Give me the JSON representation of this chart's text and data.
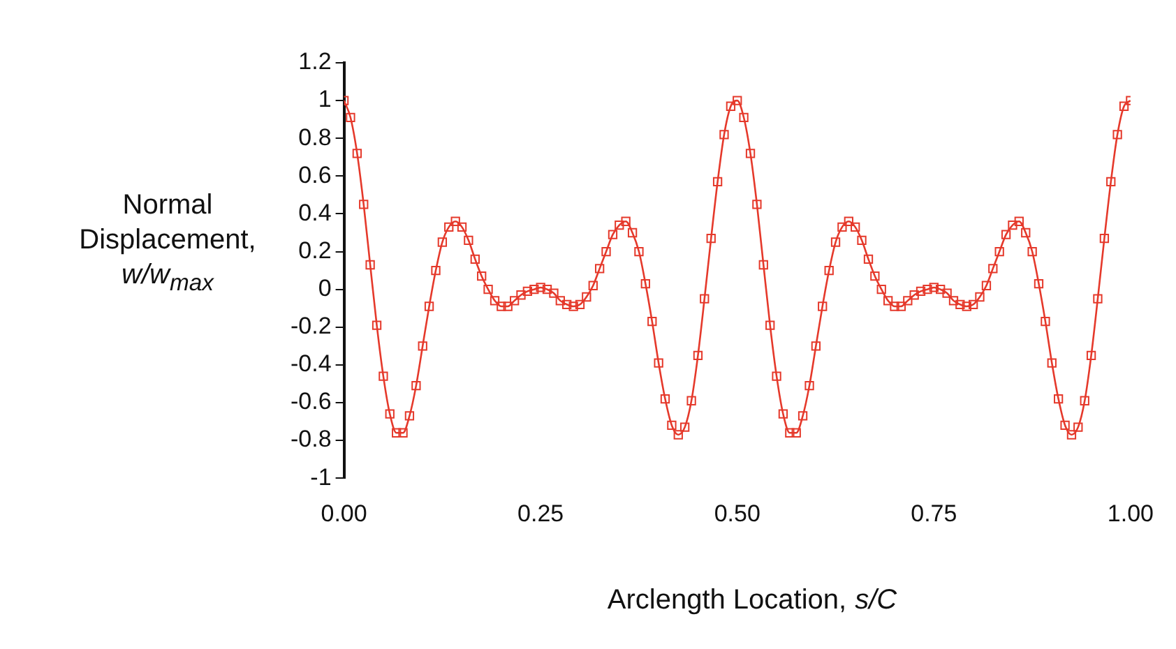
{
  "chart_data": {
    "type": "line",
    "xlabel": "Arclength Location, s/C",
    "ylabel": "Normal Displacement, w/w$_{max}$",
    "x": [
      0,
      0.0083,
      0.0167,
      0.025,
      0.0333,
      0.0417,
      0.05,
      0.0583,
      0.0667,
      0.075,
      0.0833,
      0.0917,
      0.1,
      0.1083,
      0.1167,
      0.125,
      0.1333,
      0.1417,
      0.15,
      0.1583,
      0.1667,
      0.175,
      0.1833,
      0.1917,
      0.2,
      0.2083,
      0.2167,
      0.225,
      0.2333,
      0.2417,
      0.25,
      0.2583,
      0.2667,
      0.275,
      0.2833,
      0.2917,
      0.3,
      0.3083,
      0.3167,
      0.325,
      0.3333,
      0.3417,
      0.35,
      0.3583,
      0.3667,
      0.375,
      0.3833,
      0.3917,
      0.4,
      0.4083,
      0.4167,
      0.425,
      0.4333,
      0.4417,
      0.45,
      0.4583,
      0.4667,
      0.475,
      0.4833,
      0.4917,
      0.5,
      0.5083,
      0.5167,
      0.525,
      0.5333,
      0.5417,
      0.55,
      0.5583,
      0.5667,
      0.575,
      0.5833,
      0.5917,
      0.6,
      0.6083,
      0.6167,
      0.625,
      0.6333,
      0.6417,
      0.65,
      0.6583,
      0.6667,
      0.675,
      0.6833,
      0.6917,
      0.7,
      0.7083,
      0.7167,
      0.725,
      0.7333,
      0.7417,
      0.75,
      0.7583,
      0.7667,
      0.775,
      0.7833,
      0.7917,
      0.8,
      0.8083,
      0.8167,
      0.825,
      0.8333,
      0.8417,
      0.85,
      0.8583,
      0.8667,
      0.875,
      0.8833,
      0.8917,
      0.9,
      0.9083,
      0.9167,
      0.925,
      0.9333,
      0.9417,
      0.95,
      0.9583,
      0.9667,
      0.975,
      0.9833,
      0.9917,
      1
    ],
    "series": [
      {
        "color": "#e5392b",
        "values": [
          1,
          0.91,
          0.72,
          0.45,
          0.13,
          -0.19,
          -0.46,
          -0.66,
          -0.76,
          -0.76,
          -0.67,
          -0.51,
          -0.3,
          -0.09,
          0.1,
          0.25,
          0.33,
          0.36,
          0.33,
          0.26,
          0.16,
          0.07,
          0,
          -0.06,
          -0.09,
          -0.09,
          -0.06,
          -0.03,
          -0.01,
          0,
          0.01,
          0,
          -0.02,
          -0.06,
          -0.08,
          -0.09,
          -0.08,
          -0.04,
          0.02,
          0.11,
          0.2,
          0.29,
          0.34,
          0.36,
          0.3,
          0.2,
          0.03,
          -0.17,
          -0.39,
          -0.58,
          -0.72,
          -0.77,
          -0.73,
          -0.59,
          -0.35,
          -0.05,
          0.27,
          0.57,
          0.82,
          0.97,
          1,
          0.91,
          0.72,
          0.45,
          0.13,
          -0.19,
          -0.46,
          -0.66,
          -0.76,
          -0.76,
          -0.67,
          -0.51,
          -0.3,
          -0.09,
          0.1,
          0.25,
          0.33,
          0.36,
          0.33,
          0.26,
          0.16,
          0.07,
          0,
          -0.06,
          -0.09,
          -0.09,
          -0.06,
          -0.03,
          -0.01,
          0,
          0.01,
          0,
          -0.02,
          -0.06,
          -0.08,
          -0.09,
          -0.08,
          -0.04,
          0.02,
          0.11,
          0.2,
          0.29,
          0.34,
          0.36,
          0.3,
          0.2,
          0.03,
          -0.17,
          -0.39,
          -0.58,
          -0.72,
          -0.77,
          -0.73,
          -0.59,
          -0.35,
          -0.05,
          0.27,
          0.57,
          0.82,
          0.97,
          1
        ]
      }
    ],
    "xlim": [
      0,
      1
    ],
    "xticks": [
      {
        "value": 0,
        "label": "0.00"
      },
      {
        "value": 0.25,
        "label": "0.25"
      },
      {
        "value": 0.5,
        "label": "0.50"
      },
      {
        "value": 0.75,
        "label": "0.75"
      },
      {
        "value": 1,
        "label": "1.00"
      }
    ],
    "ylim": [
      -1,
      1.2
    ],
    "yticks": [
      -1,
      -0.8,
      -0.6,
      -0.4,
      -0.2,
      0,
      0.2,
      0.4,
      0.6,
      0.8,
      1,
      1.2
    ],
    "grid": false,
    "legend": false,
    "marker": "square",
    "line_style": "solid"
  }
}
